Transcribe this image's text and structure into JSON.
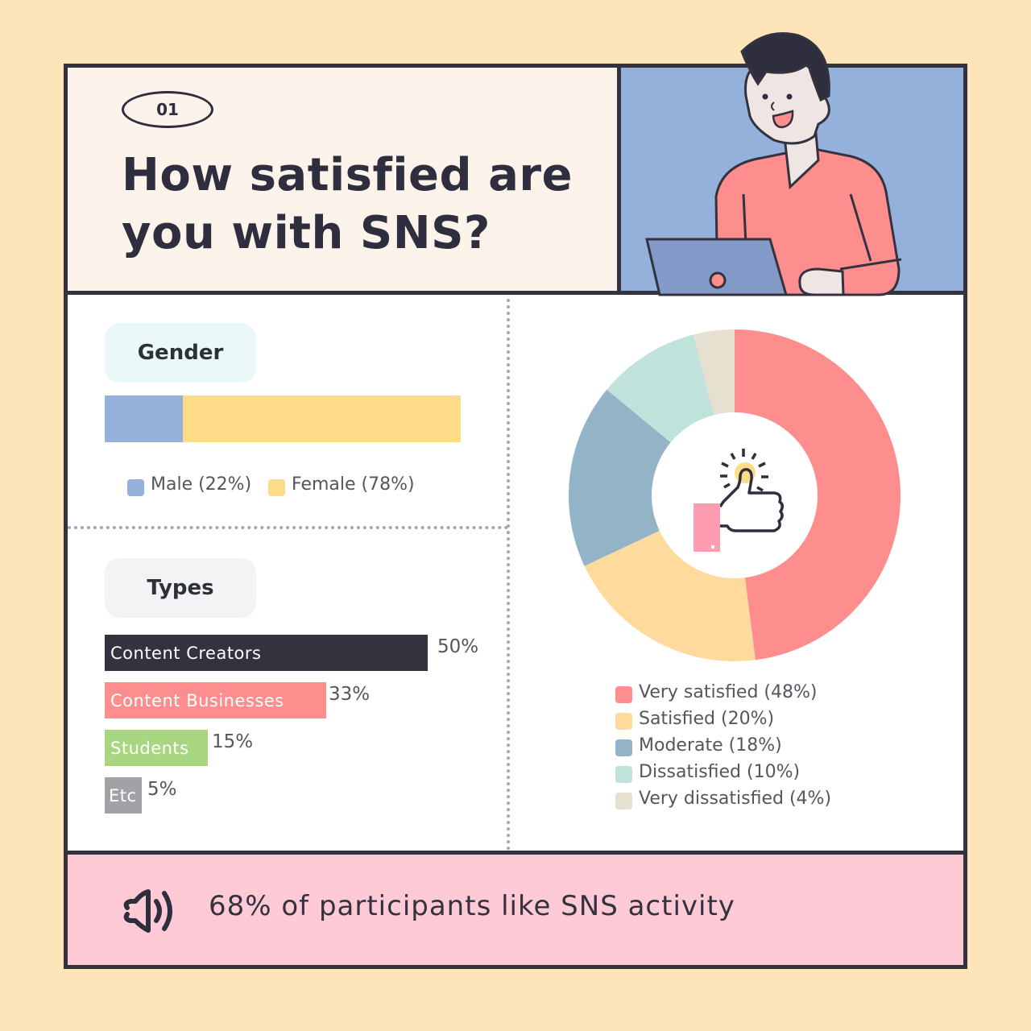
{
  "header": {
    "badge": "01",
    "title_line1": "How satisfied are",
    "title_line2": "you with SNS?"
  },
  "gender": {
    "label": "Gender",
    "segments": [
      {
        "name": "Male",
        "value": 22,
        "color": "#94b1dc",
        "legend": "Male (22%)"
      },
      {
        "name": "Female",
        "value": 78,
        "color": "#fedb86",
        "legend": "Female (78%)"
      }
    ]
  },
  "types": {
    "label": "Types",
    "rows": [
      {
        "name": "Content Creators",
        "value": 50,
        "pct": "50%",
        "color": "#34323f"
      },
      {
        "name": "Content Businesses",
        "value": 33,
        "pct": "33%",
        "color": "#fe8e8e"
      },
      {
        "name": "Students",
        "value": 15,
        "pct": "15%",
        "color": "#a8d57f"
      },
      {
        "name": "Etc",
        "value": 5,
        "pct": "5%",
        "color": "#a2a1a6"
      }
    ]
  },
  "satisfaction": {
    "legend": [
      {
        "label": "Very satisfied (48%)",
        "color": "#fe8e8e"
      },
      {
        "label": "Satisfied (20%)",
        "color": "#fedb9d"
      },
      {
        "label": "Moderate (18%)",
        "color": "#93b3c6"
      },
      {
        "label": "Dissatisfied (10%)",
        "color": "#bfe2db"
      },
      {
        "label": "Very dissatisfied (4%)",
        "color": "#e5e0cf"
      }
    ],
    "center_icon": "thumbs-up-icon"
  },
  "footer": {
    "icon": "speaker-icon",
    "text": "68% of participants like SNS activity"
  },
  "colors": {
    "background": "#fee4b9",
    "border": "#34323f",
    "header_left_bg": "#fcf4ea",
    "header_right_bg": "#94b1dc",
    "footer_bg": "#fecad5"
  },
  "chart_data": [
    {
      "type": "bar",
      "title": "Gender",
      "orientation": "horizontal-stacked",
      "categories": [
        "Male",
        "Female"
      ],
      "values": [
        22,
        78
      ],
      "unit": "%",
      "legend": [
        "Male (22%)",
        "Female (78%)"
      ]
    },
    {
      "type": "bar",
      "title": "Types",
      "orientation": "horizontal",
      "categories": [
        "Content Creators",
        "Content Businesses",
        "Students",
        "Etc"
      ],
      "values": [
        50,
        33,
        15,
        5
      ],
      "unit": "%"
    },
    {
      "type": "pie",
      "subtype": "donut",
      "title": "How satisfied are you with SNS?",
      "categories": [
        "Very satisfied",
        "Satisfied",
        "Moderate",
        "Dissatisfied",
        "Very dissatisfied"
      ],
      "values": [
        48,
        20,
        18,
        10,
        4
      ],
      "unit": "%",
      "legend_position": "bottom"
    }
  ]
}
